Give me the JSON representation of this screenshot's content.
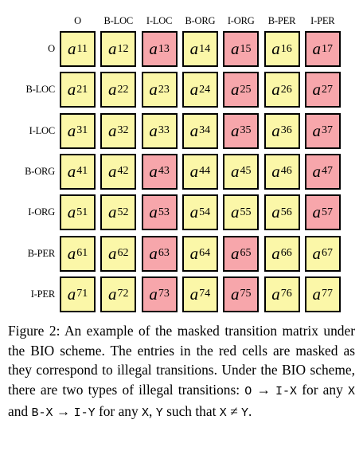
{
  "matrix": {
    "labels": [
      "O",
      "B-LOC",
      "I-LOC",
      "B-ORG",
      "I-ORG",
      "B-PER",
      "I-PER"
    ],
    "entry_symbol": "a",
    "colors": {
      "legal": "#fbf7a8",
      "masked": "#f7a6ab",
      "border": "#000000"
    },
    "masked": [
      [
        false,
        false,
        true,
        false,
        true,
        false,
        true
      ],
      [
        false,
        false,
        false,
        false,
        true,
        false,
        true
      ],
      [
        false,
        false,
        false,
        false,
        true,
        false,
        true
      ],
      [
        false,
        false,
        true,
        false,
        false,
        false,
        true
      ],
      [
        false,
        false,
        true,
        false,
        false,
        false,
        true
      ],
      [
        false,
        false,
        true,
        false,
        true,
        false,
        false
      ],
      [
        false,
        false,
        true,
        false,
        true,
        false,
        false
      ]
    ]
  },
  "caption": {
    "label": "Figure 2:",
    "text1": " An example of the masked transition matrix under the BIO scheme. The entries in the red cells are masked as they correspond to illegal transitions. Under the BIO scheme, there are two types of illegal transitions: ",
    "code1": "O",
    "arrow1": " → ",
    "code2": "I-X",
    "text2": " for any ",
    "code3": "X",
    "text3": " and ",
    "code4": "B-X",
    "arrow2": " → ",
    "code5": "I-Y",
    "text4": " for any ",
    "code6": "X",
    "text5": ", ",
    "code7": "Y",
    "text6": " such that ",
    "code8": "X",
    "neq": " ≠ ",
    "code9": "Y",
    "text7": "."
  }
}
